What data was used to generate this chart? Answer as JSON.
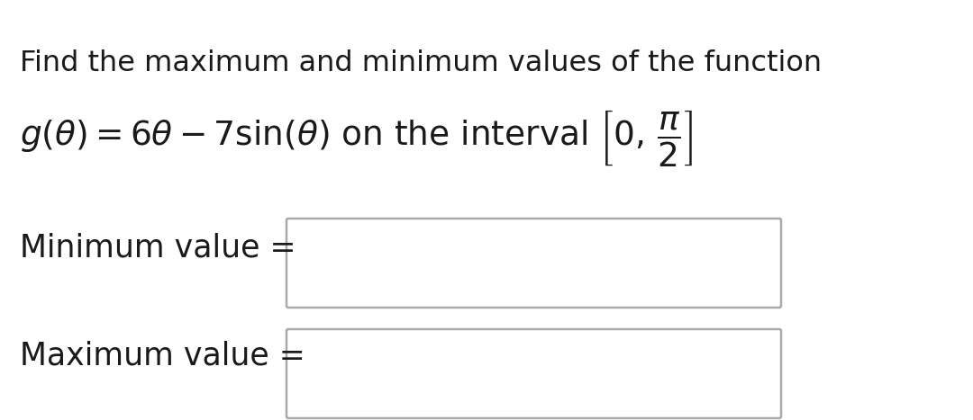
{
  "line1": "Find the maximum and minimum values of the function",
  "label_min": "Minimum value =",
  "label_max": "Maximum value =",
  "bg_color": "#ffffff",
  "text_color": "#1a1a1a",
  "box_edge_color": "#aaaaaa",
  "font_size_line1": 23,
  "font_size_eq": 27,
  "font_size_labels": 25,
  "fig_width": 10.8,
  "fig_height": 4.67,
  "dpi": 100
}
